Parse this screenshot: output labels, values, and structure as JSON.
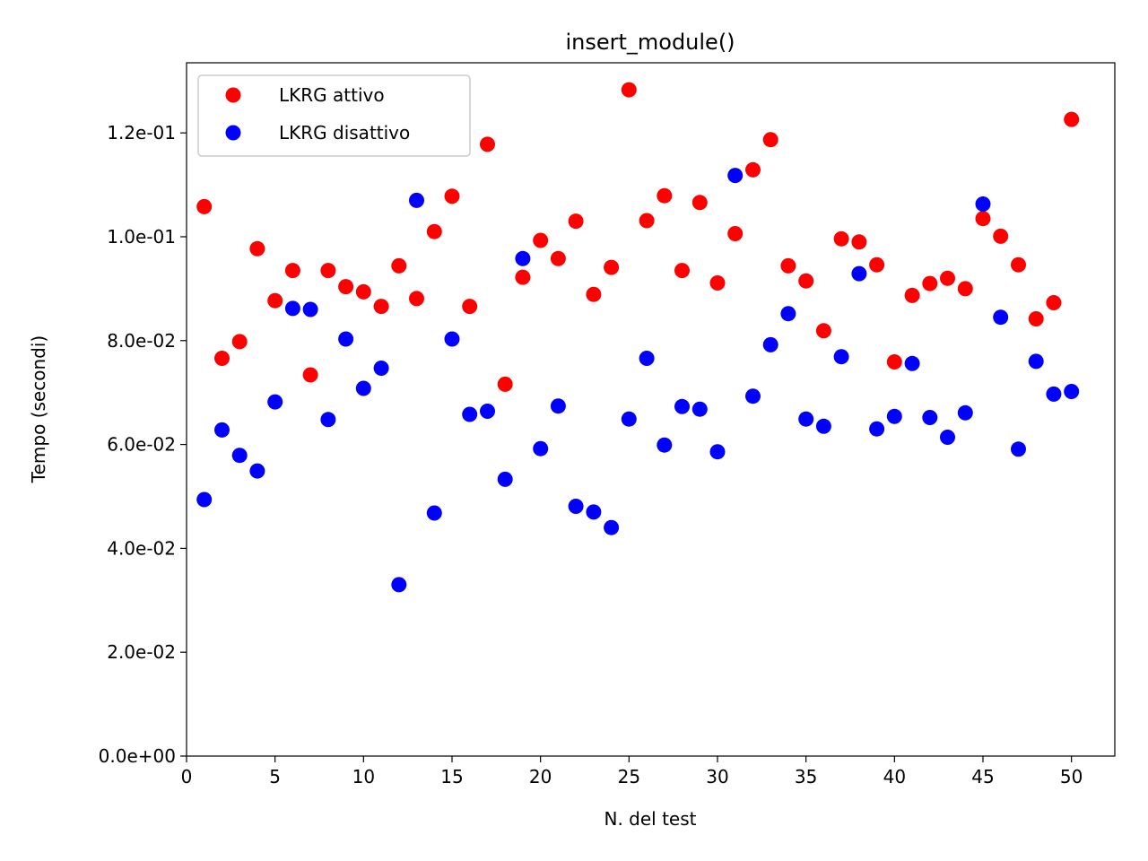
{
  "chart_data": {
    "type": "scatter",
    "title": "insert_module()",
    "xlabel": "N. del test",
    "ylabel": "Tempo (secondi)",
    "xlim": [
      0,
      52.45
    ],
    "ylim": [
      0,
      0.1335
    ],
    "xticks": [
      0,
      5,
      10,
      15,
      20,
      25,
      30,
      35,
      40,
      45,
      50
    ],
    "xtick_labels": [
      "0",
      "5",
      "10",
      "15",
      "20",
      "25",
      "30",
      "35",
      "40",
      "45",
      "50"
    ],
    "yticks": [
      0,
      0.02,
      0.04,
      0.06,
      0.08,
      0.1,
      0.12
    ],
    "ytick_labels": [
      "0.0e+00",
      "2.0e-02",
      "4.0e-02",
      "6.0e-02",
      "8.0e-02",
      "1.0e-01",
      "1.2e-01"
    ],
    "grid": false,
    "legend_position": "top-left",
    "series": [
      {
        "name": "LKRG attivo",
        "color": "#ff0000",
        "x": [
          1,
          2,
          3,
          4,
          5,
          6,
          7,
          8,
          9,
          10,
          11,
          12,
          13,
          14,
          15,
          16,
          17,
          18,
          19,
          20,
          21,
          22,
          23,
          24,
          25,
          26,
          27,
          28,
          29,
          30,
          31,
          32,
          33,
          34,
          35,
          36,
          37,
          38,
          39,
          40,
          41,
          42,
          43,
          44,
          45,
          46,
          47,
          48,
          49,
          50
        ],
        "y": [
          0.1058,
          0.0766,
          0.0798,
          0.0977,
          0.0877,
          0.0935,
          0.0734,
          0.0935,
          0.0904,
          0.0894,
          0.0866,
          0.0944,
          0.0881,
          0.101,
          0.1078,
          0.0866,
          0.1178,
          0.0716,
          0.0922,
          0.0993,
          0.0958,
          0.103,
          0.0889,
          0.0941,
          0.1283,
          0.1031,
          0.1079,
          0.0935,
          0.1066,
          0.0911,
          0.1006,
          0.1129,
          0.1187,
          0.0944,
          0.0915,
          0.0819,
          0.0996,
          0.099,
          0.0946,
          0.0759,
          0.0887,
          0.091,
          0.092,
          0.09,
          0.1035,
          0.1001,
          0.0946,
          0.0842,
          0.0873,
          0.1226
        ]
      },
      {
        "name": "LKRG disattivo",
        "color": "#0000ff",
        "x": [
          1,
          2,
          3,
          4,
          5,
          6,
          7,
          8,
          9,
          10,
          11,
          12,
          13,
          14,
          15,
          16,
          17,
          18,
          19,
          20,
          21,
          22,
          23,
          24,
          25,
          26,
          27,
          28,
          29,
          30,
          31,
          32,
          33,
          34,
          35,
          36,
          37,
          38,
          39,
          40,
          41,
          42,
          43,
          44,
          45,
          46,
          47,
          48,
          49,
          50
        ],
        "y": [
          0.0494,
          0.0628,
          0.0579,
          0.0549,
          0.0682,
          0.0862,
          0.086,
          0.0648,
          0.0803,
          0.0708,
          0.0747,
          0.033,
          0.107,
          0.0468,
          0.0803,
          0.0658,
          0.0664,
          0.0533,
          0.0958,
          0.0592,
          0.0674,
          0.0481,
          0.047,
          0.044,
          0.0649,
          0.0766,
          0.0599,
          0.0673,
          0.0668,
          0.0586,
          0.1118,
          0.0693,
          0.0792,
          0.0852,
          0.0649,
          0.0635,
          0.0769,
          0.0929,
          0.063,
          0.0654,
          0.0756,
          0.0652,
          0.0614,
          0.0661,
          0.1063,
          0.0845,
          0.0591,
          0.076,
          0.0697,
          0.0702
        ]
      }
    ]
  }
}
